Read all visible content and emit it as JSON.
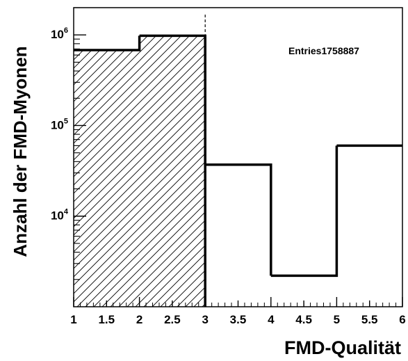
{
  "chart_data": {
    "type": "histogram",
    "xlabel": "FMD-Qualität",
    "ylabel": "Anzahl der FMD-Myonen",
    "xlim": [
      1,
      6
    ],
    "ylim": [
      1000,
      2000000
    ],
    "yscale": "log",
    "x_ticks": [
      "1",
      "1.5",
      "2",
      "2.5",
      "3",
      "3.5",
      "4",
      "4.5",
      "5",
      "5.5",
      "6"
    ],
    "y_ticks": [
      {
        "value": 10000,
        "base": "10",
        "exp": "4"
      },
      {
        "value": 100000,
        "base": "10",
        "exp": "5"
      },
      {
        "value": 1000000,
        "base": "10",
        "exp": "6"
      }
    ],
    "bins": [
      {
        "x0": 1,
        "x1": 2,
        "value": 680000
      },
      {
        "x0": 2,
        "x1": 3,
        "value": 980000
      },
      {
        "x0": 3,
        "x1": 4,
        "value": 37000
      },
      {
        "x0": 4,
        "x1": 5,
        "value": 2200
      },
      {
        "x0": 5,
        "x1": 6,
        "value": 60000
      }
    ],
    "shaded_range": [
      1,
      3
    ],
    "stats_label": "Entries",
    "stats_value": "1758887",
    "line_color": "#000000",
    "hatch": "diagonal"
  }
}
